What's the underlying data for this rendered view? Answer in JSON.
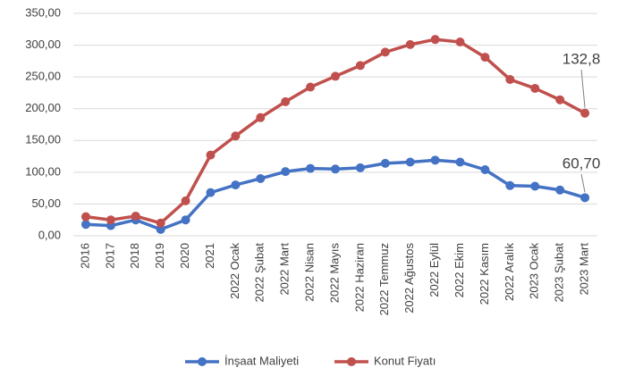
{
  "chart_data": {
    "type": "line",
    "categories": [
      "2016",
      "2017",
      "2018",
      "2019",
      "2020",
      "2021",
      "2022 Ocak",
      "2022 Şubat",
      "2022 Mart",
      "2022 Nisan",
      "2022 Mayıs",
      "2022 Haziran",
      "2022 Temmuz",
      "2022 Ağustos",
      "2022 Eylül",
      "2022 Ekim",
      "2022 Kasım",
      "2022 Aralık",
      "2023 Ocak",
      "2023 Şubat",
      "2023 Mart"
    ],
    "series": [
      {
        "name": "İnşaat Maliyeti",
        "color": "#4472c4",
        "values": [
          18,
          16,
          25,
          10,
          25,
          68,
          80,
          90,
          101,
          106,
          105,
          107,
          114,
          116,
          119,
          116,
          104,
          79,
          78,
          72,
          60
        ]
      },
      {
        "name": "Konut Fiyatı",
        "color": "#c0504d",
        "values": [
          30,
          25,
          31,
          20,
          55,
          127,
          157,
          186,
          211,
          234,
          251,
          268,
          289,
          301,
          309,
          305,
          281,
          246,
          232,
          214,
          193
        ]
      }
    ],
    "annotations": [
      "132,8",
      "60,70"
    ],
    "ylim": [
      0,
      350
    ],
    "yticks": [
      {
        "value": 0,
        "label": "0,00"
      },
      {
        "value": 50,
        "label": "50,00"
      },
      {
        "value": 100,
        "label": "100,00"
      },
      {
        "value": 150,
        "label": "150,00"
      },
      {
        "value": 200,
        "label": "200,00"
      },
      {
        "value": 250,
        "label": "250,00"
      },
      {
        "value": 300,
        "label": "300,00"
      },
      {
        "value": 350,
        "label": "350,00"
      }
    ],
    "grid": true,
    "legend": "bottom"
  }
}
